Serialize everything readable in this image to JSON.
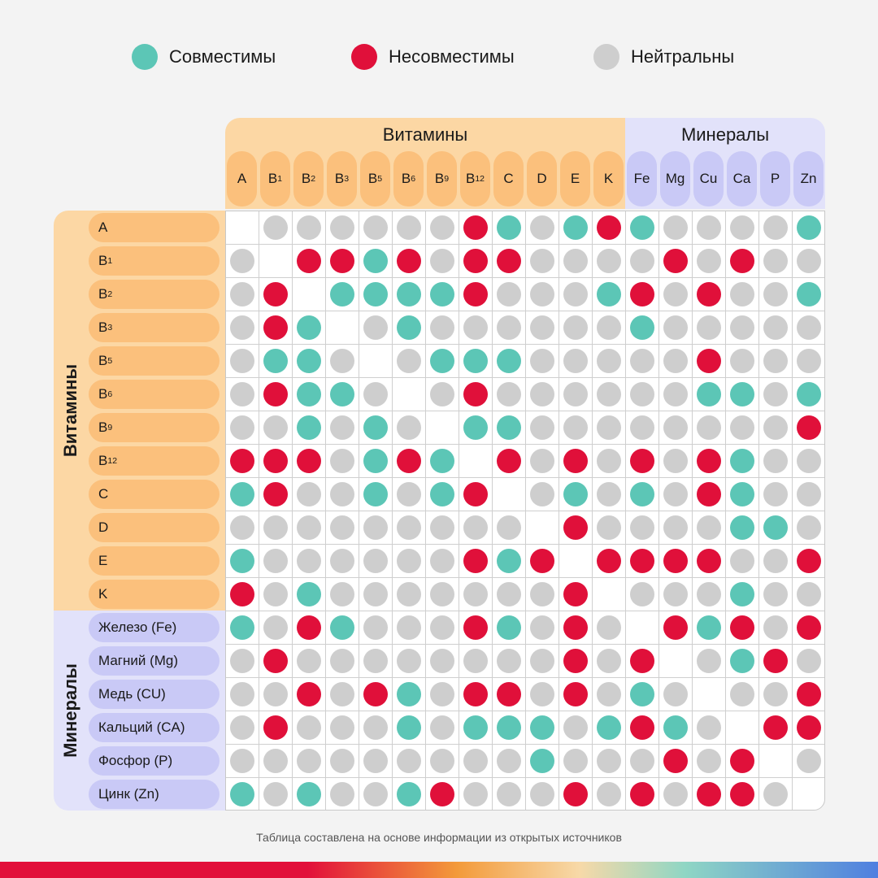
{
  "legend": [
    {
      "key": "c",
      "label": "Совместимы",
      "color": "#5cc6b6"
    },
    {
      "key": "i",
      "label": "Несовместимы",
      "color": "#e0103a"
    },
    {
      "key": "n",
      "label": "Нейтральны",
      "color": "#cecece"
    }
  ],
  "colors": {
    "c": "#5cc6b6",
    "i": "#e0103a",
    "n": "#cecece",
    "vitamin_bg": "#fcd7a4",
    "vitamin_chip": "#fbc07c",
    "mineral_bg": "#e2e2fa",
    "mineral_chip": "#c9c9f6"
  },
  "groups": {
    "vitamins": "Витамины",
    "minerals": "Минералы"
  },
  "footnote": "Таблица составлена на основе информации из открытых источников",
  "chart_data": {
    "type": "heatmap",
    "title": "",
    "columns": [
      "A",
      "B1",
      "B2",
      "B3",
      "B5",
      "B6",
      "B9",
      "B12",
      "C",
      "D",
      "E",
      "K",
      "Fe",
      "Mg",
      "Cu",
      "Ca",
      "P",
      "Zn"
    ],
    "column_groups": [
      {
        "name": "Витамины",
        "count": 12
      },
      {
        "name": "Минералы",
        "count": 6
      }
    ],
    "rows": [
      "A",
      "B1",
      "B2",
      "B3",
      "B5",
      "B6",
      "B9",
      "B12",
      "C",
      "D",
      "E",
      "K",
      "Железо (Fe)",
      "Магний (Mg)",
      "Медь (CU)",
      "Кальций (CA)",
      "Фосфор (P)",
      "Цинк (Zn)"
    ],
    "row_groups": [
      {
        "name": "Витамины",
        "count": 12
      },
      {
        "name": "Минералы",
        "count": 6
      }
    ],
    "value_legend": {
      "c": "Совместимы",
      "i": "Несовместимы",
      "n": "Нейтральны",
      "": "—"
    },
    "matrix": [
      [
        "",
        "n",
        "n",
        "n",
        "n",
        "n",
        "n",
        "i",
        "c",
        "n",
        "c",
        "i",
        "c",
        "n",
        "n",
        "n",
        "n",
        "c"
      ],
      [
        "n",
        "",
        "i",
        "i",
        "c",
        "i",
        "n",
        "i",
        "i",
        "n",
        "n",
        "n",
        "n",
        "i",
        "n",
        "i",
        "n",
        "n"
      ],
      [
        "n",
        "i",
        "",
        "c",
        "c",
        "c",
        "c",
        "i",
        "n",
        "n",
        "n",
        "c",
        "i",
        "n",
        "i",
        "n",
        "n",
        "c"
      ],
      [
        "n",
        "i",
        "c",
        "",
        "n",
        "c",
        "n",
        "n",
        "n",
        "n",
        "n",
        "n",
        "c",
        "n",
        "n",
        "n",
        "n",
        "n"
      ],
      [
        "n",
        "c",
        "c",
        "n",
        "",
        "n",
        "c",
        "c",
        "c",
        "n",
        "n",
        "n",
        "n",
        "n",
        "i",
        "n",
        "n",
        "n"
      ],
      [
        "n",
        "i",
        "c",
        "c",
        "n",
        "",
        "n",
        "i",
        "n",
        "n",
        "n",
        "n",
        "n",
        "n",
        "c",
        "c",
        "n",
        "c"
      ],
      [
        "n",
        "n",
        "c",
        "n",
        "c",
        "n",
        "",
        "c",
        "c",
        "n",
        "n",
        "n",
        "n",
        "n",
        "n",
        "n",
        "n",
        "i"
      ],
      [
        "i",
        "i",
        "i",
        "n",
        "c",
        "i",
        "c",
        "",
        "i",
        "n",
        "i",
        "n",
        "i",
        "n",
        "i",
        "c",
        "n",
        "n"
      ],
      [
        "c",
        "i",
        "n",
        "n",
        "c",
        "n",
        "c",
        "i",
        "",
        "n",
        "c",
        "n",
        "c",
        "n",
        "i",
        "c",
        "n",
        "n"
      ],
      [
        "n",
        "n",
        "n",
        "n",
        "n",
        "n",
        "n",
        "n",
        "n",
        "",
        "i",
        "n",
        "n",
        "n",
        "n",
        "c",
        "c",
        "n"
      ],
      [
        "c",
        "n",
        "n",
        "n",
        "n",
        "n",
        "n",
        "i",
        "c",
        "i",
        "",
        "i",
        "i",
        "i",
        "i",
        "n",
        "n",
        "i"
      ],
      [
        "i",
        "n",
        "c",
        "n",
        "n",
        "n",
        "n",
        "n",
        "n",
        "n",
        "i",
        "",
        "n",
        "n",
        "n",
        "c",
        "n",
        "n"
      ],
      [
        "c",
        "n",
        "i",
        "c",
        "n",
        "n",
        "n",
        "i",
        "c",
        "n",
        "i",
        "n",
        "",
        "i",
        "c",
        "i",
        "n",
        "i"
      ],
      [
        "n",
        "i",
        "n",
        "n",
        "n",
        "n",
        "n",
        "n",
        "n",
        "n",
        "i",
        "n",
        "i",
        "",
        "n",
        "c",
        "i",
        "n"
      ],
      [
        "n",
        "n",
        "i",
        "n",
        "i",
        "c",
        "n",
        "i",
        "i",
        "n",
        "i",
        "n",
        "c",
        "n",
        "",
        "n",
        "n",
        "i"
      ],
      [
        "n",
        "i",
        "n",
        "n",
        "n",
        "c",
        "n",
        "c",
        "c",
        "c",
        "n",
        "c",
        "i",
        "c",
        "n",
        "",
        "i",
        "i"
      ],
      [
        "n",
        "n",
        "n",
        "n",
        "n",
        "n",
        "n",
        "n",
        "n",
        "c",
        "n",
        "n",
        "n",
        "i",
        "n",
        "i",
        "",
        "n"
      ],
      [
        "c",
        "n",
        "c",
        "n",
        "n",
        "c",
        "i",
        "n",
        "n",
        "n",
        "i",
        "n",
        "i",
        "n",
        "i",
        "i",
        "n",
        ""
      ]
    ]
  }
}
